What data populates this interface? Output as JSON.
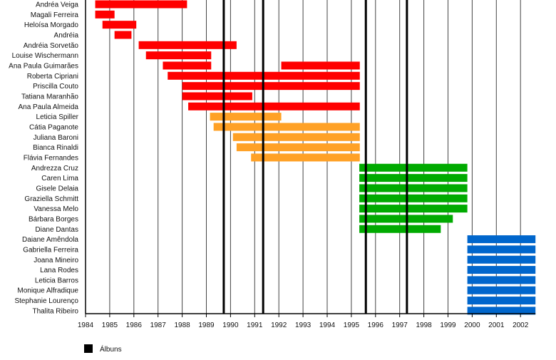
{
  "chart_data": {
    "type": "timeline",
    "xlim": [
      1984,
      2002.62
    ],
    "x_ticks": [
      1984,
      1985,
      1986,
      1987,
      1988,
      1989,
      1990,
      1991,
      1992,
      1993,
      1994,
      1995,
      1996,
      1997,
      1998,
      1999,
      2000,
      2001,
      2002
    ],
    "grid": true,
    "colors": {
      "group1": "#ff0000",
      "group2": "#ffa126",
      "group3": "#00aa00",
      "group4": "#0066cc",
      "albums": "#000000"
    },
    "rows": [
      {
        "name": "Andréa Veiga",
        "group": "group1",
        "periods": [
          [
            1984.4,
            1988.2
          ]
        ]
      },
      {
        "name": "Magali Ferreira",
        "group": "group1",
        "periods": [
          [
            1984.4,
            1985.2
          ]
        ]
      },
      {
        "name": "Heloísa Morgado",
        "group": "group1",
        "periods": [
          [
            1984.7,
            1986.1
          ]
        ]
      },
      {
        "name": "Andréia",
        "group": "group1",
        "periods": [
          [
            1985.2,
            1985.9
          ]
        ]
      },
      {
        "name": "Andréia Sorvetão",
        "group": "group1",
        "periods": [
          [
            1986.2,
            1990.25
          ]
        ]
      },
      {
        "name": "Louise Wischermann",
        "group": "group1",
        "periods": [
          [
            1986.5,
            1989.2
          ]
        ]
      },
      {
        "name": "Ana Paula Guimarães",
        "group": "group1",
        "periods": [
          [
            1987.2,
            1989.2
          ],
          [
            1992.1,
            1995.35
          ]
        ]
      },
      {
        "name": "Roberta Cipriani",
        "group": "group1",
        "periods": [
          [
            1987.4,
            1995.35
          ]
        ]
      },
      {
        "name": "Priscilla Couto",
        "group": "group1",
        "periods": [
          [
            1988.0,
            1995.35
          ]
        ]
      },
      {
        "name": "Tatiana Maranhão",
        "group": "group1",
        "periods": [
          [
            1988.0,
            1990.9
          ]
        ]
      },
      {
        "name": "Ana Paula Almeida",
        "group": "group1",
        "periods": [
          [
            1988.25,
            1995.35
          ]
        ]
      },
      {
        "name": "Leticia Spiller",
        "group": "group2",
        "periods": [
          [
            1989.15,
            1992.1
          ]
        ]
      },
      {
        "name": "Cátia Paganote",
        "group": "group2",
        "periods": [
          [
            1989.3,
            1995.35
          ]
        ]
      },
      {
        "name": "Juliana Baroni",
        "group": "group2",
        "periods": [
          [
            1990.1,
            1995.35
          ]
        ]
      },
      {
        "name": "Bianca Rinaldi",
        "group": "group2",
        "periods": [
          [
            1990.25,
            1995.35
          ]
        ]
      },
      {
        "name": "Flávia Fernandes",
        "group": "group2",
        "periods": [
          [
            1990.85,
            1995.35
          ]
        ]
      },
      {
        "name": "Andrezza Cruz",
        "group": "group3",
        "periods": [
          [
            1995.33,
            1999.8
          ]
        ]
      },
      {
        "name": "Caren Lima",
        "group": "group3",
        "periods": [
          [
            1995.33,
            1999.8
          ]
        ]
      },
      {
        "name": "Gisele Delaia",
        "group": "group3",
        "periods": [
          [
            1995.33,
            1999.8
          ]
        ]
      },
      {
        "name": "Graziella Schmitt",
        "group": "group3",
        "periods": [
          [
            1995.33,
            1999.8
          ]
        ]
      },
      {
        "name": "Vanessa Melo",
        "group": "group3",
        "periods": [
          [
            1995.33,
            1999.8
          ]
        ]
      },
      {
        "name": "Bárbara Borges",
        "group": "group3",
        "periods": [
          [
            1995.33,
            1999.2
          ]
        ]
      },
      {
        "name": "Diane Dantas",
        "group": "group3",
        "periods": [
          [
            1995.33,
            1998.7
          ]
        ]
      },
      {
        "name": "Daiane Amêndola",
        "group": "group4",
        "periods": [
          [
            1999.8,
            2002.62
          ]
        ]
      },
      {
        "name": "Gabriella Ferreira",
        "group": "group4",
        "periods": [
          [
            1999.8,
            2002.62
          ]
        ]
      },
      {
        "name": "Joana Mineiro",
        "group": "group4",
        "periods": [
          [
            1999.8,
            2002.62
          ]
        ]
      },
      {
        "name": "Lana Rodes",
        "group": "group4",
        "periods": [
          [
            1999.8,
            2002.62
          ]
        ]
      },
      {
        "name": "Leticia Barros",
        "group": "group4",
        "periods": [
          [
            1999.8,
            2002.62
          ]
        ]
      },
      {
        "name": "Monique Alfradique",
        "group": "group4",
        "periods": [
          [
            1999.8,
            2002.62
          ]
        ]
      },
      {
        "name": "Stephanie Lourenço",
        "group": "group4",
        "periods": [
          [
            1999.8,
            2002.62
          ]
        ]
      },
      {
        "name": "Thalita Ribeiro",
        "group": "group4",
        "periods": [
          [
            1999.8,
            2002.62
          ]
        ]
      }
    ],
    "albums": [
      1989.72,
      1991.35,
      1995.6,
      1997.3
    ],
    "legend": {
      "label": "Álbuns",
      "placement": "bottom-left"
    }
  }
}
